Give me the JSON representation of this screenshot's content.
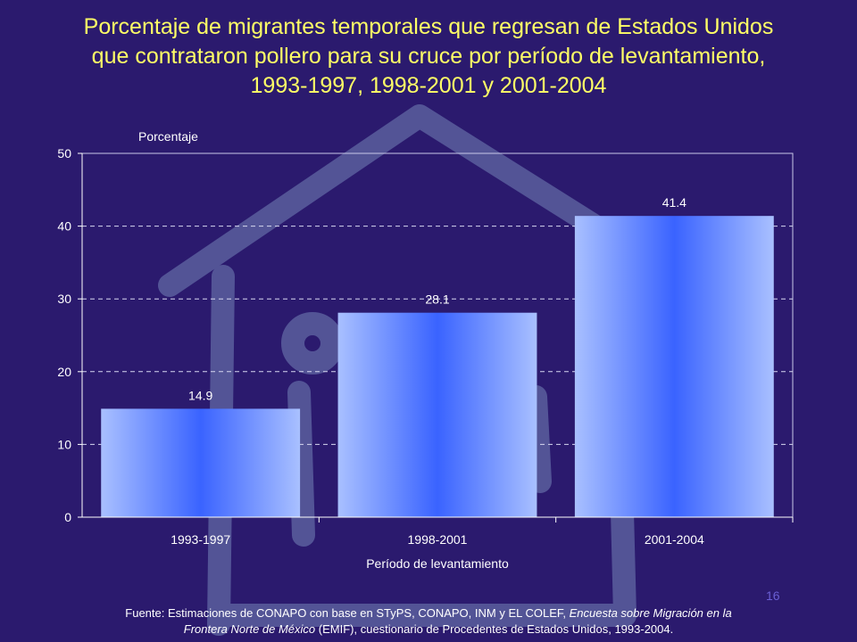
{
  "slide": {
    "title_lines": [
      "Porcentaje de migrantes temporales que regresan de Estados Unidos",
      "que contrataron pollero para su cruce por período de levantamiento,",
      "1993-1997, 1998-2001 y 2001-2004"
    ],
    "page_number": "16",
    "footer": {
      "line1_plain": "Fuente: Estimaciones de CONAPO con base en STyPS, CONAPO, INM y EL COLEF, ",
      "line1_italic": "Encuesta sobre Migración en la",
      "line2_italic": "Frontera Norte de México",
      "line2_plain": " (EMIF), cuestionario de Procedentes de Estados Unidos, 1993-2004."
    },
    "colors": {
      "background": "#2b1a6e",
      "title": "#ffff66",
      "text": "#ffffff",
      "bar_edge": "#a9c0ff",
      "bar_center": "#3a63ff",
      "watermark": "#5a5f9e"
    }
  },
  "chart_data": {
    "type": "bar",
    "categories": [
      "1993-1997",
      "1998-2001",
      "2001-2004"
    ],
    "values": [
      14.9,
      28.1,
      41.4
    ],
    "data_labels": [
      "14.9",
      "28.1",
      "41.4"
    ],
    "ylabel": "Porcentaje",
    "xlabel": "Período de levantamiento",
    "ylim": [
      0,
      50
    ],
    "yticks": [
      0,
      10,
      20,
      30,
      40,
      50
    ],
    "grid": true
  }
}
